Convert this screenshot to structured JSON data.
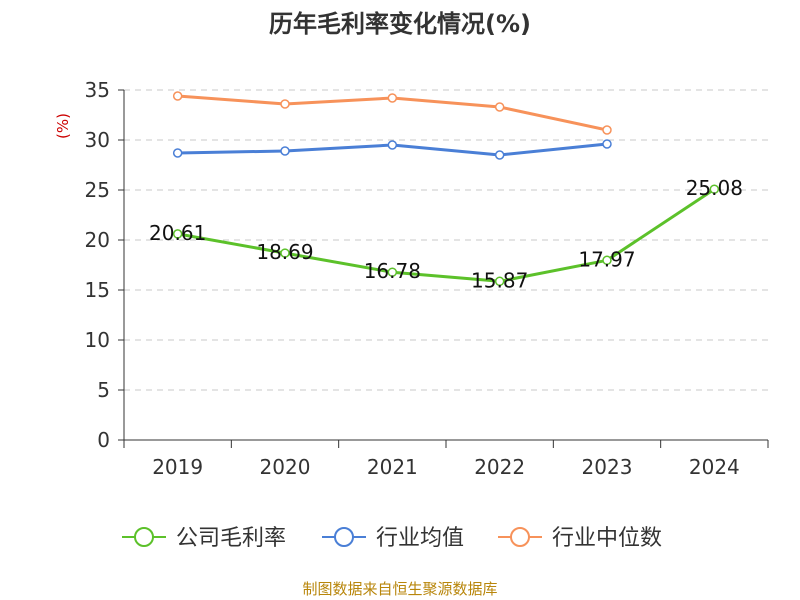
{
  "chart_data": {
    "type": "line",
    "title": "历年毛利率变化情况(%)",
    "ylabel": "(%)",
    "categories": [
      "2019",
      "2020",
      "2021",
      "2022",
      "2023",
      "2024"
    ],
    "ylim": [
      0,
      35
    ],
    "yticks": [
      0,
      5,
      10,
      15,
      20,
      25,
      30,
      35
    ],
    "grid": true,
    "legend_position": "bottom",
    "series": [
      {
        "name": "公司毛利率",
        "color": "#5cc12a",
        "values": [
          20.61,
          18.69,
          16.78,
          15.87,
          17.97,
          25.08
        ],
        "show_labels": true
      },
      {
        "name": "行业均值",
        "color": "#4a7fd6",
        "values": [
          28.7,
          28.9,
          29.5,
          28.5,
          29.6,
          null
        ],
        "show_labels": false
      },
      {
        "name": "行业中位数",
        "color": "#f7925a",
        "values": [
          34.4,
          33.6,
          34.2,
          33.3,
          31.0,
          null
        ],
        "show_labels": false
      }
    ],
    "data_labels": [
      "20.61",
      "18.69",
      "16.78",
      "15.87",
      "17.97",
      "25.08"
    ]
  },
  "source": "制图数据来自恒生聚源数据库"
}
